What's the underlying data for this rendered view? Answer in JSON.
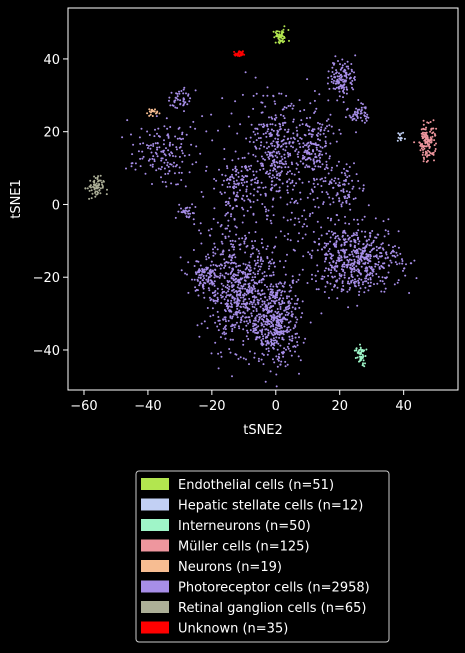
{
  "chart_data": {
    "type": "scatter",
    "xlabel": "tSNE2",
    "ylabel": "tSNE1",
    "xlim": [
      -65,
      57
    ],
    "ylim": [
      -51,
      54
    ],
    "xticks": [
      -60,
      -40,
      -20,
      0,
      20,
      40
    ],
    "yticks": [
      -40,
      -20,
      0,
      20,
      40
    ],
    "xtick_labels": [
      "−60",
      "−40",
      "−20",
      "0",
      "20",
      "40"
    ],
    "ytick_labels": [
      "−40",
      "−20",
      "0",
      "20",
      "40"
    ],
    "background": "#000000",
    "legend_position": "below",
    "series": [
      {
        "name": "Endothelial cells (n=51)",
        "color": "#b2e64f",
        "n": 51,
        "clusters": [
          {
            "cx": 1.5,
            "cy": 46,
            "sx": 1.2,
            "sy": 1.0,
            "n": 51
          }
        ]
      },
      {
        "name": "Hepatic stellate cells (n=12)",
        "color": "#c2d0f4",
        "n": 12,
        "clusters": [
          {
            "cx": 39,
            "cy": 18.5,
            "sx": 0.6,
            "sy": 0.6,
            "n": 12
          }
        ]
      },
      {
        "name": "Interneurons (n=50)",
        "color": "#9ff5c8",
        "n": 50,
        "clusters": [
          {
            "cx": 26.5,
            "cy": -41.5,
            "sx": 0.7,
            "sy": 1.4,
            "n": 50
          }
        ]
      },
      {
        "name": "Müller cells (n=125)",
        "color": "#ee969e",
        "n": 125,
        "clusters": [
          {
            "cx": 47.5,
            "cy": 17.5,
            "sx": 1.3,
            "sy": 2.8,
            "n": 125
          }
        ]
      },
      {
        "name": "Neurons (n=19)",
        "color": "#f7bd92",
        "n": 19,
        "clusters": [
          {
            "cx": -38.5,
            "cy": 25.3,
            "sx": 0.9,
            "sy": 0.6,
            "n": 19
          }
        ]
      },
      {
        "name": "Photoreceptor cells (n=2958)",
        "color": "#a78ee8",
        "n": 2958,
        "clusters": [
          {
            "cx": -12,
            "cy": -24,
            "sx": 5,
            "sy": 7,
            "n": 560
          },
          {
            "cx": 0,
            "cy": -32,
            "sx": 4,
            "sy": 6,
            "n": 480
          },
          {
            "cx": -22,
            "cy": -20,
            "sx": 2.5,
            "sy": 2.5,
            "n": 110
          },
          {
            "cx": 25,
            "cy": -15,
            "sx": 7,
            "sy": 4.5,
            "n": 560
          },
          {
            "cx": 0,
            "cy": 14,
            "sx": 4,
            "sy": 7,
            "n": 300
          },
          {
            "cx": 12,
            "cy": 15,
            "sx": 3,
            "sy": 5,
            "n": 160
          },
          {
            "cx": -12,
            "cy": 5,
            "sx": 4,
            "sy": 4,
            "n": 140
          },
          {
            "cx": -36,
            "cy": 14,
            "sx": 5,
            "sy": 4,
            "n": 150
          },
          {
            "cx": -30,
            "cy": 29,
            "sx": 1.5,
            "sy": 1.5,
            "n": 40
          },
          {
            "cx": 21,
            "cy": 35,
            "sx": 2.0,
            "sy": 2.5,
            "n": 120
          },
          {
            "cx": 26,
            "cy": 25,
            "sx": 1.5,
            "sy": 1.5,
            "n": 50
          },
          {
            "cx": 22,
            "cy": 5,
            "sx": 3,
            "sy": 3,
            "n": 80
          },
          {
            "cx": -28,
            "cy": -2,
            "sx": 1.5,
            "sy": 1,
            "n": 30
          },
          {
            "cx": -2,
            "cy": 25,
            "sx": 14,
            "sy": 4,
            "n": 60
          },
          {
            "cx": -8,
            "cy": -10,
            "sx": 10,
            "sy": 5,
            "n": 60
          },
          {
            "cx": 10,
            "cy": 0,
            "sx": 6,
            "sy": 5,
            "n": 58
          }
        ]
      },
      {
        "name": "Retinal ganglion cells (n=65)",
        "color": "#acaf97",
        "n": 65,
        "clusters": [
          {
            "cx": -56.5,
            "cy": 4.5,
            "sx": 1.3,
            "sy": 1.6,
            "n": 65
          }
        ]
      },
      {
        "name": "Unknown (n=35)",
        "color": "#ff0000",
        "n": 35,
        "clusters": [
          {
            "cx": -11.5,
            "cy": 41.3,
            "sx": 0.6,
            "sy": 0.4,
            "n": 35
          }
        ]
      }
    ]
  }
}
